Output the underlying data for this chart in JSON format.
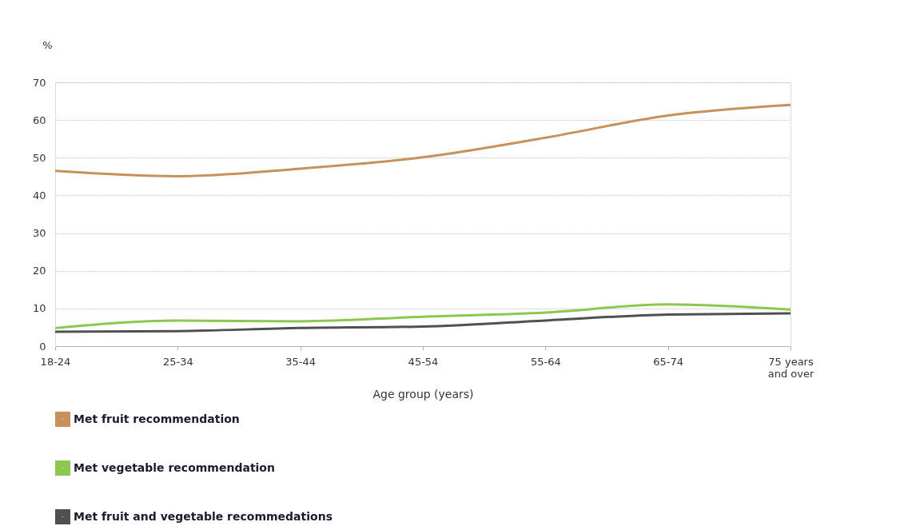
{
  "chart_data": {
    "type": "line",
    "xlabel": "Age group (years)",
    "ylabel": "%",
    "categories": [
      "18-24",
      "25-34",
      "35-44",
      "45-54",
      "55-64",
      "65-74",
      "75 years\nand over"
    ],
    "series": [
      {
        "name": "Met fruit recommendation",
        "color": "#c8915a",
        "values": [
          46.5,
          45.1,
          47.1,
          50.1,
          55.3,
          61.2,
          64.0
        ]
      },
      {
        "name": "Met vegetable recommendation",
        "color": "#8cc850",
        "values": [
          4.8,
          6.8,
          6.6,
          7.8,
          8.9,
          11.1,
          9.7
        ]
      },
      {
        "name": "Met fruit and vegetable recommedations",
        "color": "#505050",
        "values": [
          3.8,
          4.0,
          4.8,
          5.2,
          6.8,
          8.4,
          8.7
        ]
      }
    ],
    "ylim": [
      0,
      70
    ],
    "yticks": [
      0,
      10,
      20,
      30,
      40,
      50,
      60,
      70
    ],
    "grid": "y",
    "legend": "bottom left",
    "marker": "none",
    "line_style": "solid"
  }
}
